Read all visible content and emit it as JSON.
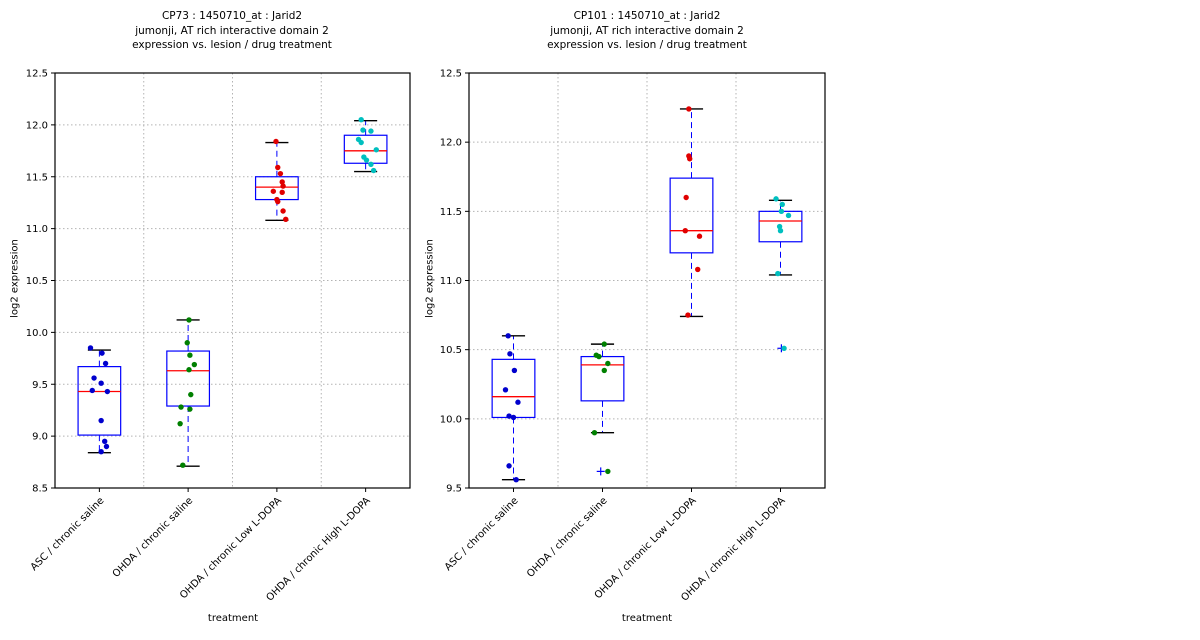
{
  "figure": {
    "background": "#ffffff"
  },
  "style": {
    "box_color": "#0000ff",
    "median_color": "#ff0000",
    "whisker_color": "#0000ff",
    "cap_color": "#000000",
    "spine_color": "#000000",
    "grid_color": "#b3b3b3",
    "flier_color": "#0000ff",
    "tick_label_color": "#000000"
  },
  "chart_data": [
    {
      "type": "box",
      "title_lines": [
        "CP73 : 1450710_at : Jarid2",
        "jumonji, AT rich interactive domain 2",
        "expression vs. lesion / drug treatment"
      ],
      "xlabel": "treatment",
      "ylabel": "log2 expression",
      "ylim": [
        8.5,
        12.5
      ],
      "ytick_step": 0.5,
      "grid": "dotted",
      "legend": "none",
      "categories": [
        "ASC / chronic saline",
        "OHDA / chronic saline",
        "OHDA / chronic Low L-DOPA",
        "OHDA / chronic High L-DOPA"
      ],
      "groups": [
        {
          "label": "ASC / chronic saline",
          "point_color": "#0000cd",
          "box": {
            "whisker_low": 8.84,
            "q1": 9.01,
            "median": 9.43,
            "q3": 9.67,
            "whisker_high": 9.83
          },
          "points": [
            [
              -0.1,
              9.85
            ],
            [
              0.03,
              9.8
            ],
            [
              0.07,
              9.7
            ],
            [
              -0.06,
              9.56
            ],
            [
              0.02,
              9.51
            ],
            [
              -0.08,
              9.44
            ],
            [
              0.09,
              9.43
            ],
            [
              0.02,
              9.15
            ],
            [
              0.06,
              8.95
            ],
            [
              0.08,
              8.9
            ],
            [
              0.02,
              8.85
            ]
          ],
          "fliers": []
        },
        {
          "label": "OHDA / chronic saline",
          "point_color": "#008000",
          "box": {
            "whisker_low": 8.71,
            "q1": 9.29,
            "median": 9.63,
            "q3": 9.82,
            "whisker_high": 10.12
          },
          "points": [
            [
              0.01,
              10.12
            ],
            [
              -0.01,
              9.9
            ],
            [
              0.02,
              9.78
            ],
            [
              0.07,
              9.69
            ],
            [
              0.01,
              9.64
            ],
            [
              0.03,
              9.4
            ],
            [
              -0.08,
              9.28
            ],
            [
              0.02,
              9.26
            ],
            [
              -0.09,
              9.12
            ],
            [
              -0.06,
              8.72
            ]
          ],
          "fliers": []
        },
        {
          "label": "OHDA / chronic Low L-DOPA",
          "point_color": "#e00000",
          "box": {
            "whisker_low": 11.08,
            "q1": 11.28,
            "median": 11.4,
            "q3": 11.5,
            "whisker_high": 11.83
          },
          "points": [
            [
              -0.01,
              11.84
            ],
            [
              0.01,
              11.59
            ],
            [
              0.04,
              11.53
            ],
            [
              0.06,
              11.45
            ],
            [
              0.07,
              11.41
            ],
            [
              -0.04,
              11.36
            ],
            [
              0.06,
              11.35
            ],
            [
              0.0,
              11.28
            ],
            [
              0.01,
              11.26
            ],
            [
              0.07,
              11.17
            ],
            [
              0.1,
              11.09
            ]
          ],
          "fliers": []
        },
        {
          "label": "OHDA / chronic High L-DOPA",
          "point_color": "#00bfbf",
          "box": {
            "whisker_low": 11.55,
            "q1": 11.63,
            "median": 11.75,
            "q3": 11.9,
            "whisker_high": 12.04
          },
          "points": [
            [
              -0.05,
              12.05
            ],
            [
              -0.03,
              11.95
            ],
            [
              0.06,
              11.94
            ],
            [
              -0.08,
              11.86
            ],
            [
              -0.05,
              11.83
            ],
            [
              0.12,
              11.76
            ],
            [
              -0.02,
              11.69
            ],
            [
              0.01,
              11.66
            ],
            [
              0.06,
              11.62
            ],
            [
              0.09,
              11.56
            ]
          ],
          "fliers": []
        }
      ]
    },
    {
      "type": "box",
      "title_lines": [
        "CP101 : 1450710_at : Jarid2",
        "jumonji, AT rich interactive domain 2",
        "expression vs. lesion / drug treatment"
      ],
      "xlabel": "treatment",
      "ylabel": "log2 expression",
      "ylim": [
        9.5,
        12.5
      ],
      "ytick_step": 0.5,
      "grid": "dotted",
      "legend": "none",
      "categories": [
        "ASC / chronic saline",
        "OHDA / chronic saline",
        "OHDA / chronic Low L-DOPA",
        "OHDA / chronic High L-DOPA"
      ],
      "groups": [
        {
          "label": "ASC / chronic saline",
          "point_color": "#0000cd",
          "box": {
            "whisker_low": 9.56,
            "q1": 10.01,
            "median": 10.16,
            "q3": 10.43,
            "whisker_high": 10.6
          },
          "points": [
            [
              -0.06,
              10.6
            ],
            [
              -0.04,
              10.47
            ],
            [
              0.01,
              10.35
            ],
            [
              -0.09,
              10.21
            ],
            [
              0.05,
              10.12
            ],
            [
              -0.05,
              10.02
            ],
            [
              0.0,
              10.01
            ],
            [
              -0.05,
              9.66
            ],
            [
              0.03,
              9.56
            ]
          ],
          "fliers": []
        },
        {
          "label": "OHDA / chronic saline",
          "point_color": "#008000",
          "box": {
            "whisker_low": 9.9,
            "q1": 10.13,
            "median": 10.39,
            "q3": 10.45,
            "whisker_high": 10.54
          },
          "points": [
            [
              0.02,
              10.54
            ],
            [
              -0.07,
              10.46
            ],
            [
              -0.04,
              10.45
            ],
            [
              0.06,
              10.4
            ],
            [
              0.02,
              10.35
            ],
            [
              -0.09,
              9.9
            ],
            [
              0.06,
              9.62
            ]
          ],
          "fliers": [
            [
              -0.02,
              9.62
            ]
          ]
        },
        {
          "label": "OHDA / chronic Low L-DOPA",
          "point_color": "#e00000",
          "box": {
            "whisker_low": 10.74,
            "q1": 11.2,
            "median": 11.36,
            "q3": 11.74,
            "whisker_high": 12.24
          },
          "points": [
            [
              -0.03,
              12.24
            ],
            [
              -0.03,
              11.9
            ],
            [
              -0.02,
              11.88
            ],
            [
              -0.06,
              11.6
            ],
            [
              -0.07,
              11.36
            ],
            [
              0.09,
              11.32
            ],
            [
              0.07,
              11.08
            ],
            [
              -0.04,
              10.75
            ]
          ],
          "fliers": []
        },
        {
          "label": "OHDA / chronic High L-DOPA",
          "point_color": "#00bfbf",
          "box": {
            "whisker_low": 11.04,
            "q1": 11.28,
            "median": 11.43,
            "q3": 11.5,
            "whisker_high": 11.58
          },
          "points": [
            [
              -0.05,
              11.59
            ],
            [
              0.02,
              11.55
            ],
            [
              0.01,
              11.5
            ],
            [
              0.09,
              11.47
            ],
            [
              -0.01,
              11.39
            ],
            [
              0.0,
              11.36
            ],
            [
              -0.03,
              11.05
            ],
            [
              0.04,
              10.51
            ]
          ],
          "fliers": [
            [
              0.01,
              10.51
            ]
          ]
        }
      ]
    }
  ]
}
